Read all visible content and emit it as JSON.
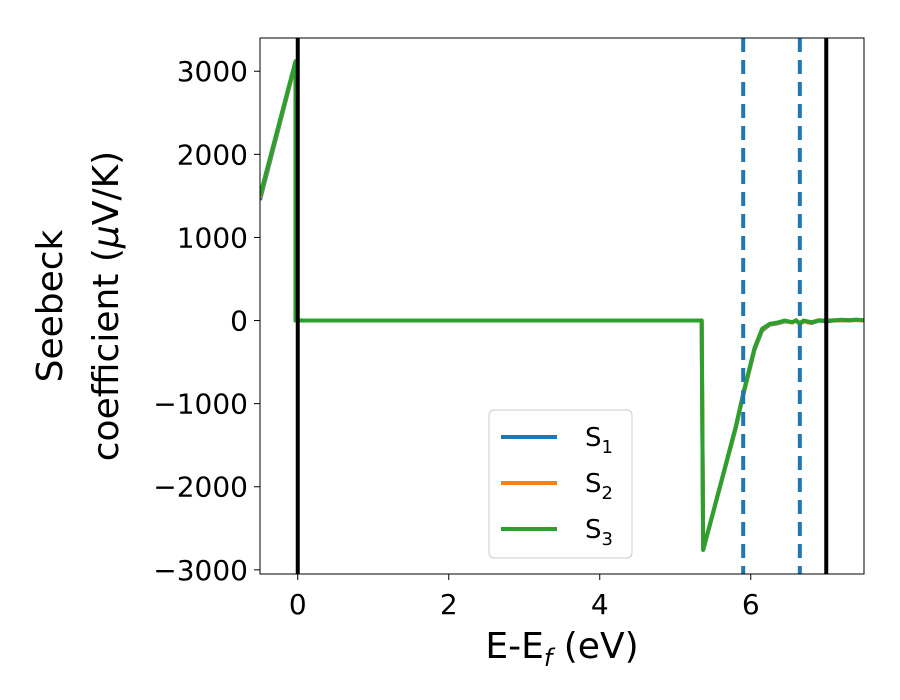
{
  "chart_data": {
    "type": "line",
    "xlabel": "E-E_f (eV)",
    "xlabel_parts": {
      "main": "E-E",
      "sub": "f",
      "unit": " (eV)"
    },
    "ylabel_line1": "Seebeck",
    "ylabel_line2_prefix": "coefficient  (",
    "ylabel_mu": "μ",
    "ylabel_line2_suffix": "V/K)",
    "xlim": [
      -0.5,
      7.5
    ],
    "ylim": [
      -3050,
      3400
    ],
    "xticks": [
      0,
      2,
      4,
      6
    ],
    "xtick_labels": [
      "0",
      "2",
      "4",
      "6"
    ],
    "yticks": [
      3000,
      2000,
      1000,
      0,
      -1000,
      -2000,
      -3000
    ],
    "ytick_labels": [
      "3000",
      "2000",
      "1000",
      "0",
      "−1000",
      "−2000",
      "−3000"
    ],
    "grid": false,
    "legend_position": "bottom-center",
    "vlines_solid": [
      0.0,
      7.0
    ],
    "vlines_dashed": [
      5.9,
      6.65
    ],
    "series": [
      {
        "name": "S_1",
        "name_main": "S",
        "name_sub": "1",
        "color": "#1f77b4",
        "x": [
          -0.5,
          -0.03,
          -0.03,
          5.35,
          5.35,
          5.37,
          5.8,
          5.9,
          6.05,
          6.15,
          6.25,
          6.35,
          6.45,
          6.55,
          6.6,
          6.65,
          6.7,
          6.75,
          6.8,
          6.9,
          7.0,
          7.1,
          7.2,
          7.3,
          7.4,
          7.5
        ],
        "y": [
          1450,
          3100,
          0,
          0,
          0,
          -2760,
          -1300,
          -900,
          -350,
          -120,
          -50,
          -35,
          -10,
          -20,
          0,
          -40,
          -10,
          -15,
          -30,
          0,
          -10,
          0,
          5,
          0,
          10,
          0
        ]
      },
      {
        "name": "S_2",
        "name_main": "S",
        "name_sub": "2",
        "color": "#ff7f0e",
        "x": [
          -0.5,
          -0.03,
          -0.03,
          5.35,
          5.35,
          5.37,
          5.8,
          5.9,
          6.05,
          6.15,
          6.25,
          6.35,
          6.45,
          6.55,
          6.6,
          6.65,
          6.7,
          6.75,
          6.8,
          6.9,
          7.0,
          7.1,
          7.2,
          7.3,
          7.4,
          7.5
        ],
        "y": [
          1480,
          3110,
          0,
          0,
          0,
          -2760,
          -1290,
          -890,
          -340,
          -110,
          -45,
          -30,
          -5,
          -25,
          5,
          -45,
          -5,
          -20,
          -25,
          5,
          -5,
          5,
          0,
          5,
          5,
          0
        ]
      },
      {
        "name": "S_3",
        "name_main": "S",
        "name_sub": "3",
        "color": "#2ca02c",
        "x": [
          -0.5,
          -0.03,
          -0.03,
          5.35,
          5.35,
          5.37,
          5.8,
          5.9,
          6.05,
          6.15,
          6.25,
          6.35,
          6.45,
          6.55,
          6.6,
          6.65,
          6.7,
          6.75,
          6.8,
          6.9,
          7.0,
          7.1,
          7.2,
          7.3,
          7.4,
          7.5
        ],
        "y": [
          1500,
          3120,
          0,
          0,
          0,
          -2760,
          -1280,
          -880,
          -330,
          -100,
          -40,
          -25,
          0,
          -20,
          0,
          -30,
          0,
          -10,
          -20,
          0,
          0,
          0,
          10,
          5,
          10,
          5
        ]
      }
    ],
    "colors": {
      "vline_solid": "#000000",
      "vline_dashed": "#1f77b4"
    }
  }
}
